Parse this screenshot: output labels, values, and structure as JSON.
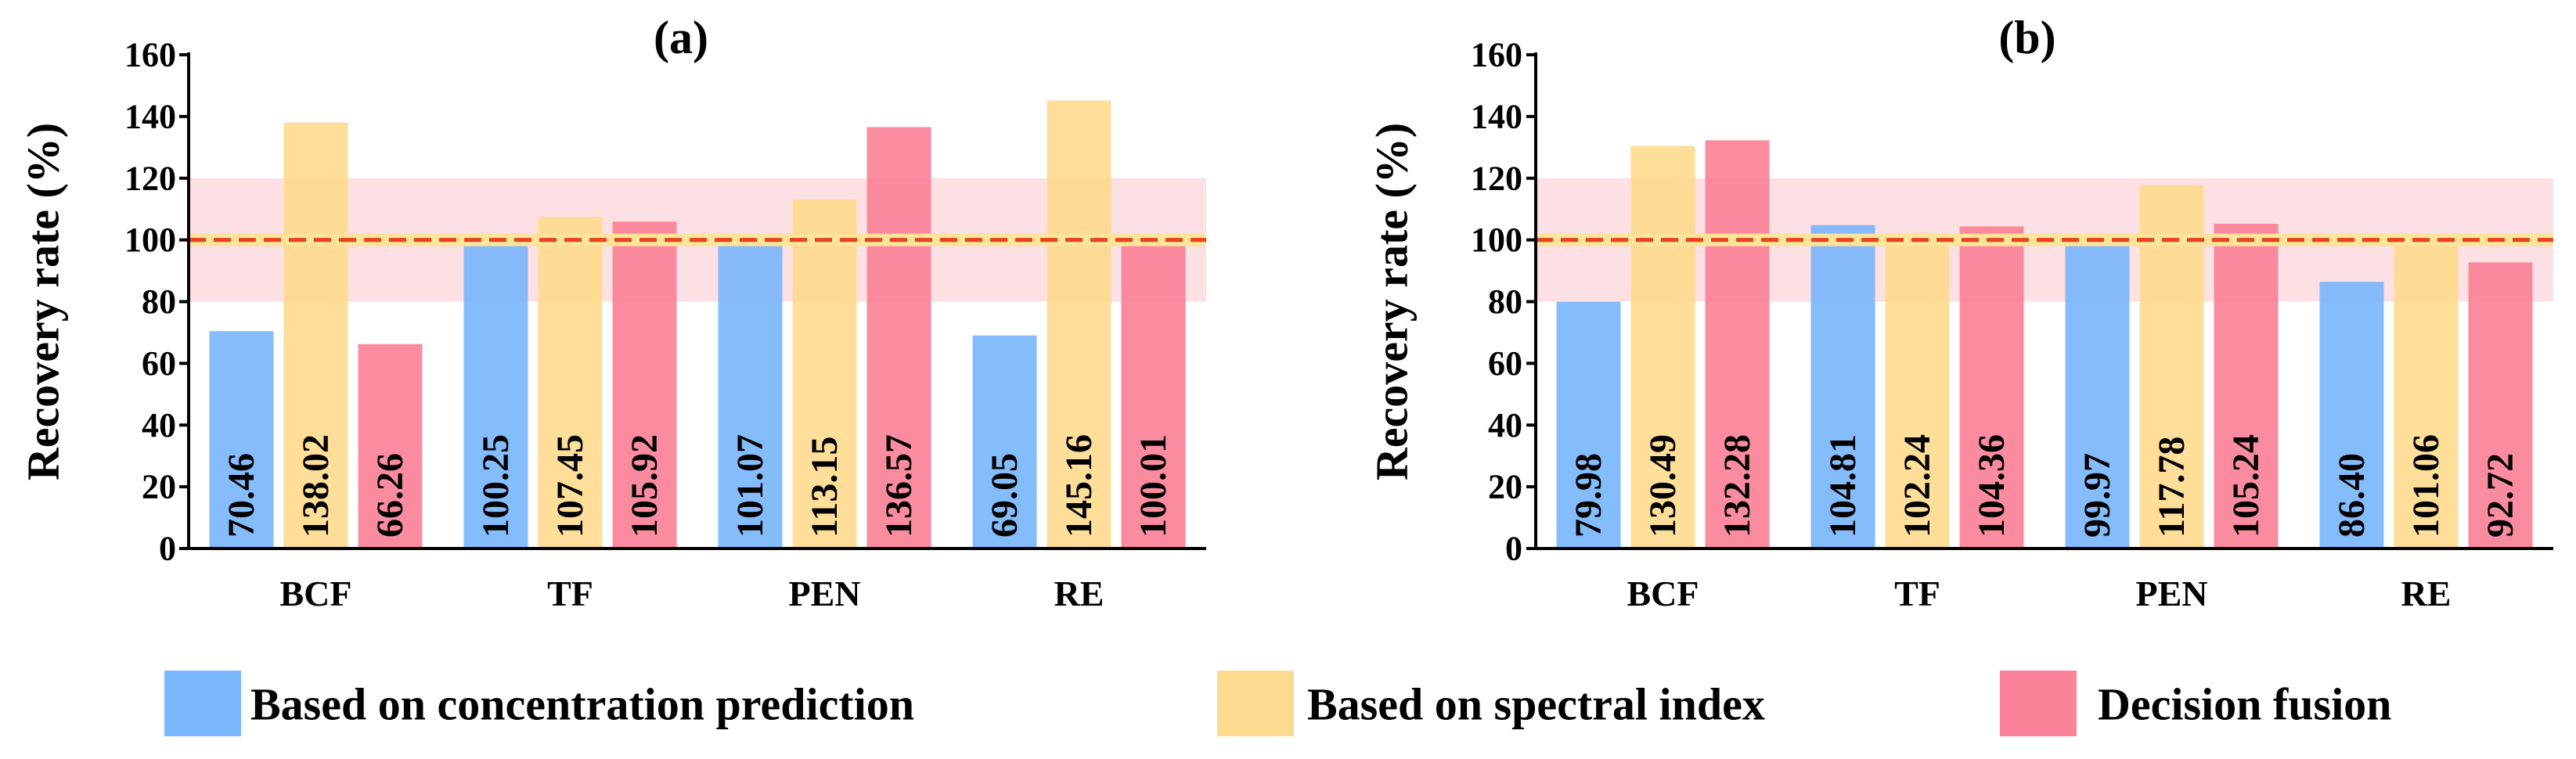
{
  "legend": {
    "items": [
      {
        "label": "Based on concentration prediction",
        "color": "#74b3fc"
      },
      {
        "label": "Based on spectral index",
        "color": "#fed98a"
      },
      {
        "label": "Decision fusion",
        "color": "#fb7c93"
      }
    ]
  },
  "colors": {
    "band": "#fde0e4",
    "reference_line": "#e8421f",
    "reference_glow": "#fde49a"
  },
  "chart_data": [
    {
      "type": "bar",
      "title": "(a)",
      "ylabel": "Recovery rate (%)",
      "xlabel": "",
      "ylim": [
        0,
        160
      ],
      "yticks": [
        "0",
        "20",
        "40",
        "60",
        "80",
        "100",
        "120",
        "140",
        "160"
      ],
      "categories": [
        "BCF",
        "TF",
        "PEN",
        "RE"
      ],
      "band": [
        80,
        120
      ],
      "reference_line": 100,
      "grid": false,
      "legend_position": "bottom",
      "series": [
        {
          "name": "Based on concentration prediction",
          "values": [
            70.46,
            100.25,
            101.07,
            69.05
          ],
          "labels": [
            "70.46",
            "100.25",
            "101.07",
            "69.05"
          ]
        },
        {
          "name": "Based on spectral index",
          "values": [
            138.02,
            107.45,
            113.15,
            145.16
          ],
          "labels": [
            "138.02",
            "107.45",
            "113.15",
            "145.16"
          ]
        },
        {
          "name": "Decision fusion",
          "values": [
            66.26,
            105.92,
            136.57,
            100.01
          ],
          "labels": [
            "66.26",
            "105.92",
            "136.57",
            "100.01"
          ]
        }
      ]
    },
    {
      "type": "bar",
      "title": "(b)",
      "ylabel": "Recovery rate (%)",
      "xlabel": "",
      "ylim": [
        0,
        160
      ],
      "yticks": [
        "0",
        "20",
        "40",
        "60",
        "80",
        "100",
        "120",
        "140",
        "160"
      ],
      "categories": [
        "BCF",
        "TF",
        "PEN",
        "RE"
      ],
      "band": [
        80,
        120
      ],
      "reference_line": 100,
      "grid": false,
      "legend_position": "bottom",
      "series": [
        {
          "name": "Based on concentration prediction",
          "values": [
            79.98,
            104.81,
            99.97,
            86.4
          ],
          "labels": [
            "79.98",
            "104.81",
            "99.97",
            "86.40"
          ]
        },
        {
          "name": "Based on spectral index",
          "values": [
            130.49,
            102.24,
            117.78,
            101.06
          ],
          "labels": [
            "130.49",
            "102.24",
            "117.78",
            "101.06"
          ]
        },
        {
          "name": "Decision fusion",
          "values": [
            132.28,
            104.36,
            105.24,
            92.72
          ],
          "labels": [
            "132.28",
            "104.36",
            "105.24",
            "92.72"
          ]
        }
      ]
    }
  ]
}
